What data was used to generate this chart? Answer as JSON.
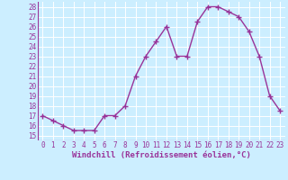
{
  "x": [
    0,
    1,
    2,
    3,
    4,
    5,
    6,
    7,
    8,
    9,
    10,
    11,
    12,
    13,
    14,
    15,
    16,
    17,
    18,
    19,
    20,
    21,
    22,
    23
  ],
  "y": [
    17.0,
    16.5,
    16.0,
    15.5,
    15.5,
    15.5,
    17.0,
    17.0,
    18.0,
    21.0,
    23.0,
    24.5,
    26.0,
    23.0,
    23.0,
    26.5,
    28.0,
    28.0,
    27.5,
    27.0,
    25.5,
    23.0,
    19.0,
    17.5
  ],
  "line_color": "#993399",
  "marker": "+",
  "marker_size": 4,
  "bg_color": "#cceeff",
  "grid_color": "#ffffff",
  "xlabel": "Windchill (Refroidissement éolien,°C)",
  "xlabel_color": "#993399",
  "tick_color": "#993399",
  "xlim": [
    -0.5,
    23.5
  ],
  "ylim": [
    14.5,
    28.5
  ],
  "yticks": [
    15,
    16,
    17,
    18,
    19,
    20,
    21,
    22,
    23,
    24,
    25,
    26,
    27,
    28
  ],
  "xticks": [
    0,
    1,
    2,
    3,
    4,
    5,
    6,
    7,
    8,
    9,
    10,
    11,
    12,
    13,
    14,
    15,
    16,
    17,
    18,
    19,
    20,
    21,
    22,
    23
  ],
  "tick_fontsize": 5.5,
  "xlabel_fontsize": 6.5,
  "linewidth": 1.0,
  "markeredgewidth": 1.0
}
